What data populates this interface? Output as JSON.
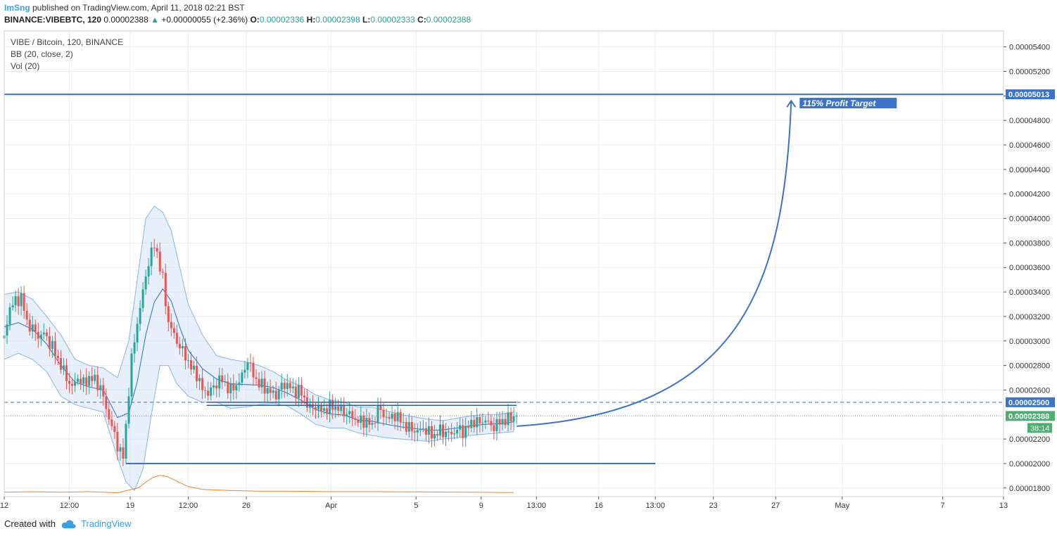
{
  "header": {
    "author": "ImSng",
    "published_text": " published on TradingView.com, April 11, 2018 02:21 BST",
    "symbol_line": "BINANCE:VIBEBTC, 120",
    "last_price": "0.00002388",
    "change_text": "+0.00000055 (+2.36%)",
    "o_label": "O:",
    "o_value": "0.00002336",
    "h_label": "H:",
    "h_value": "0.00002398",
    "l_label": "L:",
    "l_value": "0.00002333",
    "c_label": "C:",
    "c_value": "0.00002388"
  },
  "legend": {
    "title": "VIBE / Bitcoin, 120, BINANCE",
    "bb": "BB (20, close, 2)",
    "vol": "Vol (20)"
  },
  "footer": {
    "created_with": "Created with",
    "brand": "TradingView"
  },
  "colors": {
    "up": "#26a69a",
    "down": "#ef5350",
    "drawing": "#3a73c8",
    "bb_fill": "#c9dcf3",
    "bb_line": "#8ab4e6",
    "bb_basis": "#2f6bc7",
    "volume": "#f0822d",
    "grid": "#ededed",
    "current_price_tag": "#4caf6f"
  },
  "chart_data": {
    "type": "candlestick",
    "title": "VIBE / Bitcoin, 120, BINANCE",
    "ylim": [
      1.73e-05,
      5.53e-05
    ],
    "y_ticks": [
      "0.00005400",
      "0.00005200",
      "0.00005000",
      "0.00004800",
      "0.00004600",
      "0.00004400",
      "0.00004200",
      "0.00004000",
      "0.00003800",
      "0.00003600",
      "0.00003400",
      "0.00003200",
      "0.00003000",
      "0.00002800",
      "0.00002600",
      "0.00002200",
      "0.00002000",
      "0.00001800"
    ],
    "x_ticks": [
      "12",
      "12:00",
      "19",
      "12:00",
      "26",
      "Apr",
      "5",
      "9",
      "13:00",
      "16",
      "13:00",
      "23",
      "27",
      "May",
      "7",
      "13"
    ],
    "x_tick_values": [
      0,
      46,
      89,
      130,
      171,
      231,
      291,
      337,
      376,
      420,
      460,
      501,
      545,
      592,
      663,
      706
    ],
    "price_range_hours": [
      0,
      706
    ],
    "price_series_end_hour": 362,
    "close_series": [
      [
        0,
        30.2
      ],
      [
        4,
        32.8
      ],
      [
        8,
        33.2
      ],
      [
        12,
        33.6
      ],
      [
        16,
        31.5
      ],
      [
        20,
        31.0
      ],
      [
        24,
        30.4
      ],
      [
        28,
        30.6
      ],
      [
        34,
        29.5
      ],
      [
        40,
        28.0
      ],
      [
        44,
        27.0
      ],
      [
        48,
        26.2
      ],
      [
        52,
        27.0
      ],
      [
        56,
        26.5
      ],
      [
        60,
        27.0
      ],
      [
        64,
        26.8
      ],
      [
        68,
        26.2
      ],
      [
        72,
        24.5
      ],
      [
        76,
        23.0
      ],
      [
        80,
        21.5
      ],
      [
        84,
        20.5
      ],
      [
        86,
        23.0
      ],
      [
        88,
        26.0
      ],
      [
        90,
        28.5
      ],
      [
        94,
        31.5
      ],
      [
        98,
        34.0
      ],
      [
        102,
        36.5
      ],
      [
        106,
        37.8
      ],
      [
        108,
        37.2
      ],
      [
        110,
        36.0
      ],
      [
        112,
        35.0
      ],
      [
        116,
        31.5
      ],
      [
        120,
        30.5
      ],
      [
        124,
        29.5
      ],
      [
        128,
        28.8
      ],
      [
        132,
        27.8
      ],
      [
        136,
        27.3
      ],
      [
        140,
        26.0
      ],
      [
        144,
        25.8
      ],
      [
        148,
        26.2
      ],
      [
        152,
        26.9
      ],
      [
        156,
        26.5
      ],
      [
        160,
        26.0
      ],
      [
        164,
        26.4
      ],
      [
        168,
        27.1
      ],
      [
        172,
        28.5
      ],
      [
        176,
        27.2
      ],
      [
        180,
        26.5
      ],
      [
        184,
        26.2
      ],
      [
        188,
        25.8
      ],
      [
        192,
        25.6
      ],
      [
        196,
        26.3
      ],
      [
        200,
        26.5
      ],
      [
        204,
        25.9
      ],
      [
        208,
        26.0
      ],
      [
        212,
        25.3
      ],
      [
        216,
        24.5
      ],
      [
        220,
        24.7
      ],
      [
        224,
        24.3
      ],
      [
        228,
        24.5
      ],
      [
        232,
        24.7
      ],
      [
        236,
        24.5
      ],
      [
        240,
        24.2
      ],
      [
        244,
        24.0
      ],
      [
        248,
        23.6
      ],
      [
        252,
        23.4
      ],
      [
        256,
        23.5
      ],
      [
        260,
        23.0
      ],
      [
        264,
        24.5
      ],
      [
        268,
        24.0
      ],
      [
        272,
        23.6
      ],
      [
        276,
        24.0
      ],
      [
        280,
        23.5
      ],
      [
        284,
        23.0
      ],
      [
        288,
        22.8
      ],
      [
        292,
        22.6
      ],
      [
        296,
        22.9
      ],
      [
        300,
        22.5
      ],
      [
        304,
        22.3
      ],
      [
        308,
        22.7
      ],
      [
        312,
        22.5
      ],
      [
        316,
        22.4
      ],
      [
        320,
        22.8
      ],
      [
        324,
        22.6
      ],
      [
        328,
        23.0
      ],
      [
        332,
        23.5
      ],
      [
        336,
        23.3
      ],
      [
        340,
        23.6
      ],
      [
        344,
        23.0
      ],
      [
        348,
        23.2
      ],
      [
        352,
        23.5
      ],
      [
        356,
        23.6
      ],
      [
        360,
        23.88
      ]
    ],
    "bb_upper": [
      [
        0,
        33.8
      ],
      [
        10,
        34.0
      ],
      [
        20,
        33.4
      ],
      [
        30,
        32.0
      ],
      [
        40,
        30.5
      ],
      [
        50,
        28.5
      ],
      [
        60,
        28.0
      ],
      [
        70,
        27.8
      ],
      [
        80,
        27.0
      ],
      [
        88,
        30.0
      ],
      [
        94,
        35.0
      ],
      [
        100,
        40.0
      ],
      [
        106,
        41.0
      ],
      [
        112,
        40.5
      ],
      [
        118,
        39.0
      ],
      [
        124,
        36.0
      ],
      [
        130,
        33.0
      ],
      [
        140,
        30.5
      ],
      [
        150,
        28.8
      ],
      [
        160,
        28.5
      ],
      [
        170,
        28.3
      ],
      [
        180,
        28.0
      ],
      [
        190,
        27.5
      ],
      [
        200,
        26.8
      ],
      [
        210,
        26.3
      ],
      [
        220,
        25.6
      ],
      [
        230,
        25.2
      ],
      [
        240,
        25.0
      ],
      [
        250,
        24.6
      ],
      [
        260,
        24.6
      ],
      [
        270,
        24.3
      ],
      [
        280,
        24.0
      ],
      [
        290,
        23.8
      ],
      [
        300,
        23.6
      ],
      [
        310,
        23.5
      ],
      [
        320,
        23.7
      ],
      [
        330,
        23.9
      ],
      [
        340,
        24.0
      ],
      [
        350,
        24.0
      ],
      [
        360,
        24.2
      ]
    ],
    "bb_lower": [
      [
        0,
        28.5
      ],
      [
        10,
        29.0
      ],
      [
        20,
        28.5
      ],
      [
        30,
        27.5
      ],
      [
        40,
        25.5
      ],
      [
        50,
        24.8
      ],
      [
        60,
        24.5
      ],
      [
        70,
        24.2
      ],
      [
        80,
        20.5
      ],
      [
        86,
        18.5
      ],
      [
        92,
        17.8
      ],
      [
        98,
        19.5
      ],
      [
        104,
        24.0
      ],
      [
        110,
        28.0
      ],
      [
        116,
        28.0
      ],
      [
        122,
        26.5
      ],
      [
        130,
        25.5
      ],
      [
        140,
        25.0
      ],
      [
        150,
        25.0
      ],
      [
        160,
        24.5
      ],
      [
        170,
        24.6
      ],
      [
        180,
        24.8
      ],
      [
        190,
        24.9
      ],
      [
        200,
        24.7
      ],
      [
        210,
        24.0
      ],
      [
        220,
        23.2
      ],
      [
        230,
        22.9
      ],
      [
        240,
        22.9
      ],
      [
        250,
        22.5
      ],
      [
        260,
        22.3
      ],
      [
        270,
        22.1
      ],
      [
        280,
        22.0
      ],
      [
        290,
        21.9
      ],
      [
        300,
        21.8
      ],
      [
        310,
        22.0
      ],
      [
        320,
        22.1
      ],
      [
        330,
        22.3
      ],
      [
        340,
        22.4
      ],
      [
        350,
        22.5
      ],
      [
        360,
        22.6
      ]
    ],
    "volume": [
      [
        0,
        0.4
      ],
      [
        20,
        0.5
      ],
      [
        40,
        0.4
      ],
      [
        60,
        0.5
      ],
      [
        80,
        0.3
      ],
      [
        95,
        1.2
      ],
      [
        100,
        2.2
      ],
      [
        105,
        3.0
      ],
      [
        110,
        3.4
      ],
      [
        115,
        3.2
      ],
      [
        120,
        2.6
      ],
      [
        130,
        1.4
      ],
      [
        140,
        0.9
      ],
      [
        160,
        0.7
      ],
      [
        180,
        0.6
      ],
      [
        200,
        0.6
      ],
      [
        230,
        0.5
      ],
      [
        260,
        0.5
      ],
      [
        300,
        0.45
      ],
      [
        330,
        0.4
      ],
      [
        360,
        0.35
      ]
    ],
    "annotations": {
      "target_price": "0.00005013",
      "target_label": "115% Profit Target",
      "resistance_price": "0.00002500",
      "current_price": "0.00002388",
      "countdown": "38:14"
    },
    "drawings": {
      "target_line_y": 50.13,
      "resistance_y": 25.0,
      "support_y": 20.0,
      "support_x": [
        86,
        460
      ],
      "resistance_box_x": [
        143,
        362
      ],
      "arrow_start": [
        362,
        23.05
      ],
      "arrow_end": [
        556,
        49.6
      ]
    }
  }
}
